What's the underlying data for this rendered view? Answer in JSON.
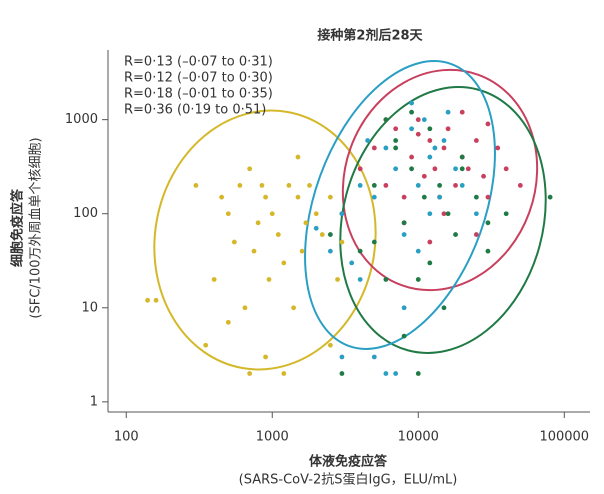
{
  "chart_data": {
    "type": "scatter",
    "title": "接种第2剂后28天",
    "x_label": [
      "体液免疫应答",
      "(SARS-CoV-2抗S蛋白IgG，ELU/mL)"
    ],
    "y_label": [
      "细胞免疫应答",
      "(SFC/100万外周血单个核细胞)"
    ],
    "log_x": true,
    "log_y": true,
    "xlim": [
      75,
      150000
    ],
    "ylim": [
      0.78,
      5500
    ],
    "xticks": [
      100,
      1000,
      10000,
      100000
    ],
    "yticks": [
      1,
      10,
      100,
      1000
    ],
    "series": [
      {
        "name": "R=0·13 (–0·07 to 0·31)",
        "color": "#d4b82a",
        "x": [
          140,
          160,
          300,
          350,
          400,
          450,
          500,
          550,
          600,
          650,
          700,
          750,
          800,
          850,
          900,
          950,
          1000,
          1100,
          1200,
          1300,
          1400,
          1500,
          1600,
          1700,
          1800,
          2000,
          2200,
          2500,
          2800,
          3000,
          700,
          900,
          1200,
          500,
          1500,
          2500
        ],
        "values": [
          12,
          12,
          200,
          4,
          20,
          150,
          100,
          50,
          200,
          10,
          300,
          40,
          80,
          200,
          150,
          20,
          100,
          60,
          30,
          200,
          10,
          150,
          40,
          80,
          200,
          100,
          60,
          150,
          20,
          50,
          2,
          3,
          2,
          7,
          400,
          4
        ]
      },
      {
        "name": "R=0·12 (–0·07 to 0·30)",
        "color": "#c8405e",
        "x": [
          4000,
          5000,
          6000,
          7000,
          8000,
          9000,
          10000,
          11000,
          12000,
          13000,
          14000,
          15000,
          16000,
          18000,
          20000,
          22000,
          25000,
          28000,
          30000,
          35000,
          40000,
          50000,
          8000,
          12000,
          15000,
          20000,
          6000,
          10000,
          25000,
          30000
        ],
        "values": [
          300,
          500,
          200,
          800,
          150,
          400,
          1000,
          250,
          600,
          300,
          150,
          500,
          800,
          200,
          400,
          300,
          600,
          250,
          150,
          500,
          300,
          200,
          80,
          50,
          100,
          1200,
          1000,
          700,
          60,
          900
        ]
      },
      {
        "name": "R=0·18 (–0·01 to 0·35)",
        "color": "#1f7a45",
        "x": [
          2500,
          3000,
          4000,
          5000,
          6000,
          7000,
          8000,
          9000,
          10000,
          11000,
          12000,
          14000,
          16000,
          18000,
          20000,
          25000,
          30000,
          40000,
          80000,
          6000,
          8000,
          10000,
          15000,
          20000,
          3000,
          5000,
          12000,
          9000,
          7000,
          30000
        ],
        "values": [
          60,
          100,
          40,
          200,
          20,
          500,
          80,
          300,
          2,
          150,
          30,
          200,
          100,
          60,
          400,
          150,
          80,
          100,
          150,
          1000,
          5,
          20,
          10,
          300,
          2,
          50,
          800,
          1200,
          600,
          40
        ]
      },
      {
        "name": "R=0·36 (0·19 to 0·51)",
        "color": "#2a9fc4",
        "x": [
          2000,
          2500,
          3000,
          3500,
          4000,
          5000,
          6000,
          7000,
          8000,
          9000,
          10000,
          11000,
          12000,
          14000,
          15000,
          18000,
          20000,
          25000,
          3000,
          4000,
          6000,
          8000,
          10000,
          13000,
          16000,
          5000,
          7000,
          9000,
          4500,
          12000
        ],
        "values": [
          70,
          40,
          100,
          30,
          200,
          150,
          500,
          300,
          60,
          800,
          200,
          1000,
          400,
          150,
          600,
          300,
          200,
          100,
          3,
          20,
          2,
          10,
          40,
          500,
          1200,
          3,
          2,
          1500,
          600,
          100
        ]
      }
    ]
  }
}
